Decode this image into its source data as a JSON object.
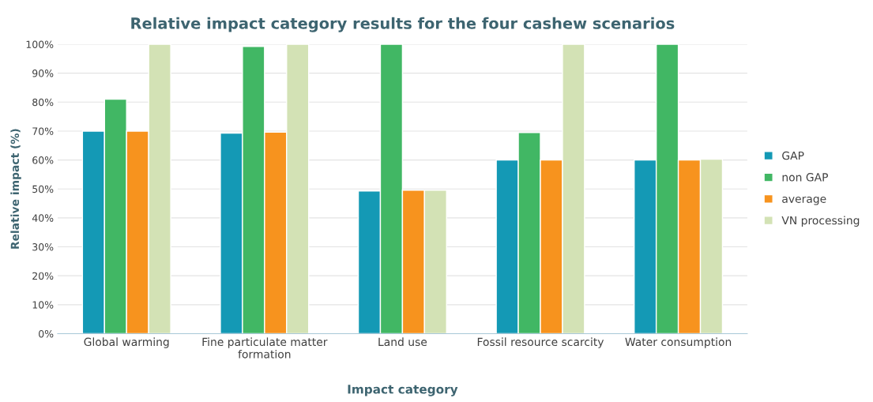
{
  "chart_data": {
    "type": "bar",
    "title": "Relative impact category results for the four cashew scenarios",
    "xlabel": "Impact category",
    "ylabel": "Relative impact (%)",
    "categories": [
      "Global warming",
      "Fine particulate matter\nformation",
      "Land use",
      "Fossil resource scarcity",
      "Water consumption"
    ],
    "series": [
      {
        "name": "GAP",
        "color": "#1499b5",
        "values": [
          70,
          69.3,
          49.3,
          60,
          60
        ]
      },
      {
        "name": "non GAP",
        "color": "#41b764",
        "values": [
          81,
          99.2,
          100,
          69.5,
          100
        ]
      },
      {
        "name": "average",
        "color": "#f7931e",
        "values": [
          70,
          69.6,
          49.6,
          60,
          60
        ]
      },
      {
        "name": "VN processing",
        "color": "#d3e2b5",
        "values": [
          100,
          100,
          49.6,
          100,
          60.3
        ]
      }
    ],
    "ylim": [
      0,
      100
    ],
    "yticks": [
      {
        "value": 0,
        "label": "0%"
      },
      {
        "value": 10,
        "label": "10%"
      },
      {
        "value": 20,
        "label": "20%"
      },
      {
        "value": 30,
        "label": "30%"
      },
      {
        "value": 40,
        "label": "40%"
      },
      {
        "value": 50,
        "label": "50%"
      },
      {
        "value": 60,
        "label": "60%"
      },
      {
        "value": 70,
        "label": "70%"
      },
      {
        "value": 80,
        "label": "80%"
      },
      {
        "value": 90,
        "label": "90%"
      },
      {
        "value": 100,
        "label": "100%"
      }
    ],
    "grid": "y",
    "legend": "right"
  }
}
